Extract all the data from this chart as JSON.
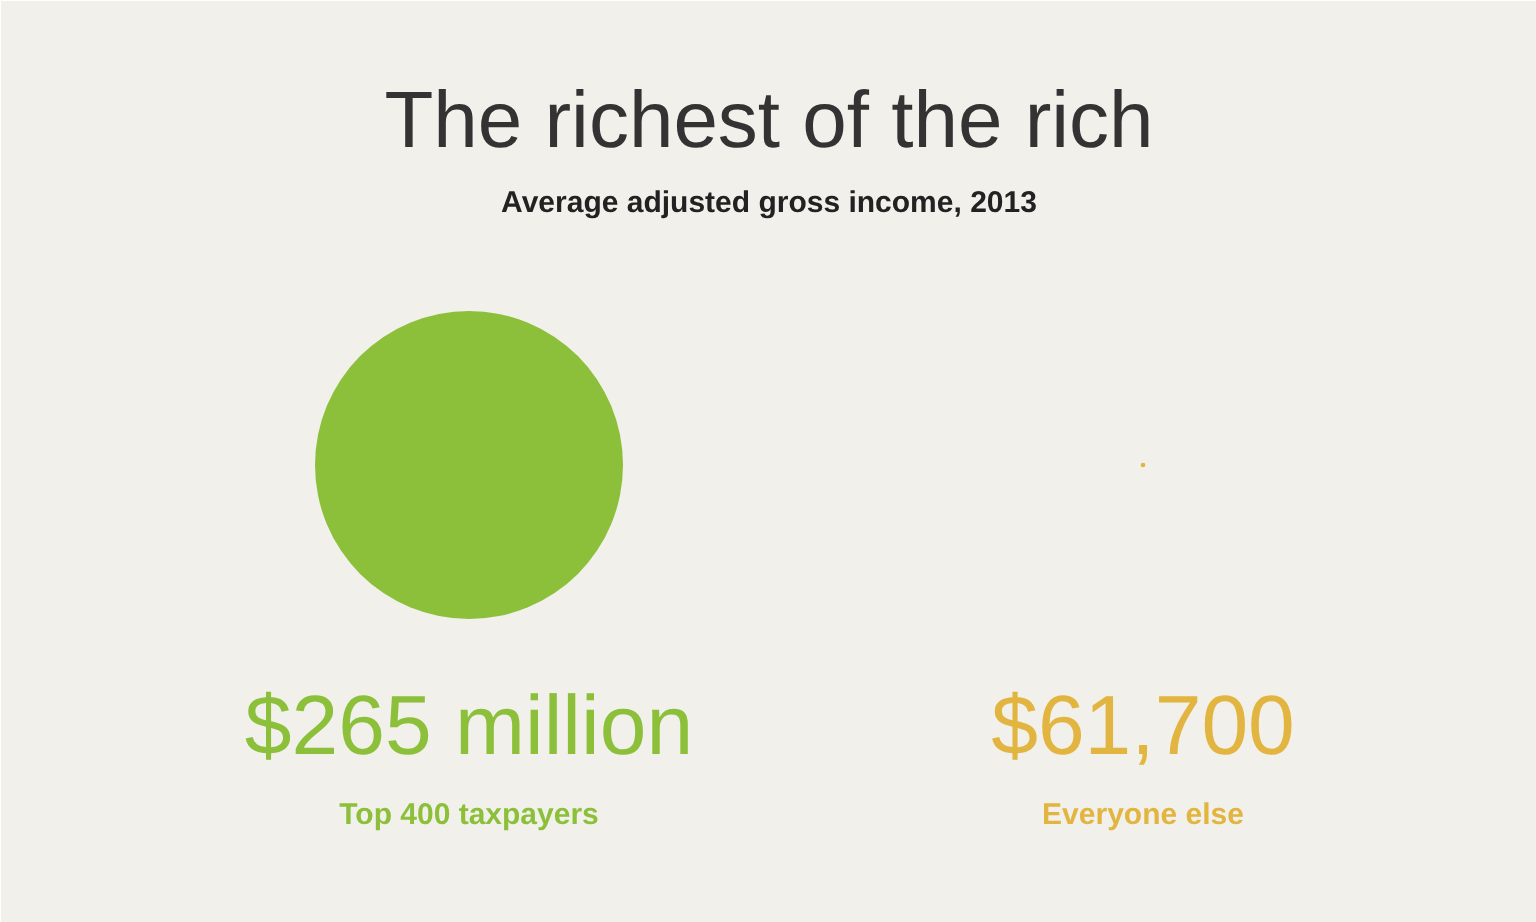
{
  "chart_data": {
    "type": "other",
    "title": "The richest of the rich",
    "subtitle": "Average adjusted gross income, 2013",
    "categories": [
      "Top 400 taxpayers",
      "Everyone else"
    ],
    "values": [
      265000000,
      61700
    ],
    "colors": [
      "#8cc03a",
      "#e2b540"
    ],
    "value_labels": [
      "$265 million",
      "$61,700"
    ]
  }
}
